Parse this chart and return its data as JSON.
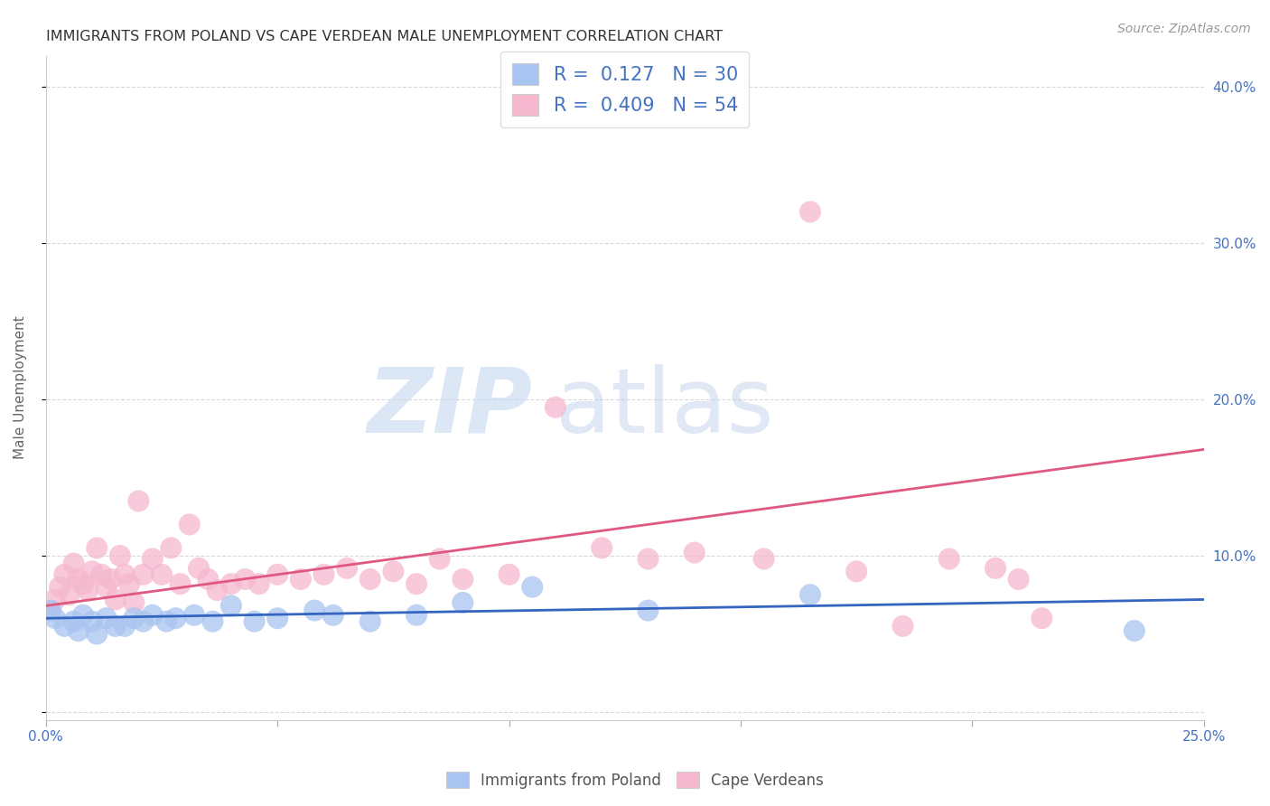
{
  "title": "IMMIGRANTS FROM POLAND VS CAPE VERDEAN MALE UNEMPLOYMENT CORRELATION CHART",
  "source": "Source: ZipAtlas.com",
  "ylabel": "Male Unemployment",
  "xlim": [
    0.0,
    0.25
  ],
  "ylim": [
    -0.005,
    0.42
  ],
  "xticks": [
    0.0,
    0.05,
    0.1,
    0.15,
    0.2,
    0.25
  ],
  "xticklabels": [
    "0.0%",
    "",
    "",
    "",
    "",
    "25.0%"
  ],
  "yticks": [
    0.0,
    0.1,
    0.2,
    0.3,
    0.4
  ],
  "yticklabels": [
    "",
    "10.0%",
    "20.0%",
    "30.0%",
    "40.0%"
  ],
  "blue_R": 0.127,
  "blue_N": 30,
  "pink_R": 0.409,
  "pink_N": 54,
  "blue_color": "#a8c4f0",
  "pink_color": "#f5b8ce",
  "blue_line_color": "#3465c0",
  "pink_line_color": "#e05880",
  "background_color": "#ffffff",
  "grid_color": "#d8d8d8",
  "tick_color": "#4472c4",
  "blue_scatter_x": [
    0.001,
    0.002,
    0.004,
    0.006,
    0.007,
    0.008,
    0.01,
    0.011,
    0.013,
    0.015,
    0.017,
    0.019,
    0.021,
    0.023,
    0.026,
    0.028,
    0.032,
    0.036,
    0.04,
    0.045,
    0.05,
    0.058,
    0.062,
    0.07,
    0.08,
    0.09,
    0.105,
    0.13,
    0.165,
    0.235
  ],
  "blue_scatter_y": [
    0.065,
    0.06,
    0.055,
    0.058,
    0.052,
    0.062,
    0.058,
    0.05,
    0.06,
    0.055,
    0.055,
    0.06,
    0.058,
    0.062,
    0.058,
    0.06,
    0.062,
    0.058,
    0.068,
    0.058,
    0.06,
    0.065,
    0.062,
    0.058,
    0.062,
    0.07,
    0.08,
    0.065,
    0.075,
    0.052
  ],
  "pink_scatter_x": [
    0.001,
    0.002,
    0.003,
    0.004,
    0.005,
    0.006,
    0.007,
    0.008,
    0.009,
    0.01,
    0.011,
    0.012,
    0.013,
    0.014,
    0.015,
    0.016,
    0.017,
    0.018,
    0.019,
    0.02,
    0.021,
    0.023,
    0.025,
    0.027,
    0.029,
    0.031,
    0.033,
    0.035,
    0.037,
    0.04,
    0.043,
    0.046,
    0.05,
    0.055,
    0.06,
    0.065,
    0.07,
    0.075,
    0.08,
    0.085,
    0.09,
    0.1,
    0.11,
    0.12,
    0.13,
    0.14,
    0.155,
    0.165,
    0.175,
    0.185,
    0.195,
    0.205,
    0.21,
    0.215
  ],
  "pink_scatter_y": [
    0.065,
    0.072,
    0.08,
    0.088,
    0.075,
    0.095,
    0.085,
    0.082,
    0.078,
    0.09,
    0.105,
    0.088,
    0.08,
    0.085,
    0.072,
    0.1,
    0.088,
    0.082,
    0.07,
    0.135,
    0.088,
    0.098,
    0.088,
    0.105,
    0.082,
    0.12,
    0.092,
    0.085,
    0.078,
    0.082,
    0.085,
    0.082,
    0.088,
    0.085,
    0.088,
    0.092,
    0.085,
    0.09,
    0.082,
    0.098,
    0.085,
    0.088,
    0.195,
    0.105,
    0.098,
    0.102,
    0.098,
    0.32,
    0.09,
    0.055,
    0.098,
    0.092,
    0.085,
    0.06
  ],
  "blue_line_x0": 0.0,
  "blue_line_y0": 0.06,
  "blue_line_x1": 0.25,
  "blue_line_y1": 0.072,
  "pink_line_x0": 0.0,
  "pink_line_y0": 0.068,
  "pink_line_x1": 0.25,
  "pink_line_y1": 0.168
}
